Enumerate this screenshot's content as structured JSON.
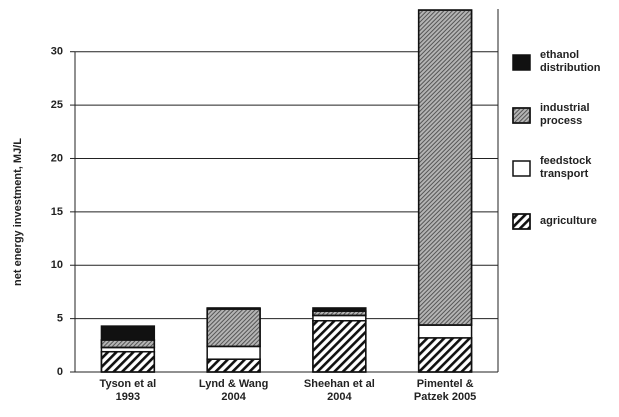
{
  "chart_data": {
    "type": "stacked_bar",
    "y_label": "net energy investment, MJ/L",
    "categories": [
      "Tyson et al\n1993",
      "Lynd & Wang\n2004",
      "Sheehan et al\n2004",
      "Pimentel &\nPatzek 2005"
    ],
    "series": [
      {
        "name": "agriculture",
        "color": "#ffffff",
        "values": [
          1.9,
          1.2,
          4.8,
          3.2
        ]
      },
      {
        "name": "feedstock\ntransport",
        "color": "#ffffff",
        "values": [
          0.4,
          1.2,
          0.5,
          1.2
        ]
      },
      {
        "name": "industrial\nprocess",
        "color": "#b4b4b4",
        "values": [
          0.7,
          3.5,
          0.4,
          29.5
        ]
      },
      {
        "name": "ethanol\ndistribution",
        "color": "#111111",
        "values": [
          1.3,
          0.1,
          0.3,
          0
        ]
      }
    ],
    "ylim": [
      0,
      34
    ],
    "yticks": [
      0,
      5,
      10,
      15,
      20,
      25,
      30
    ],
    "grid": true,
    "legend": "right"
  }
}
